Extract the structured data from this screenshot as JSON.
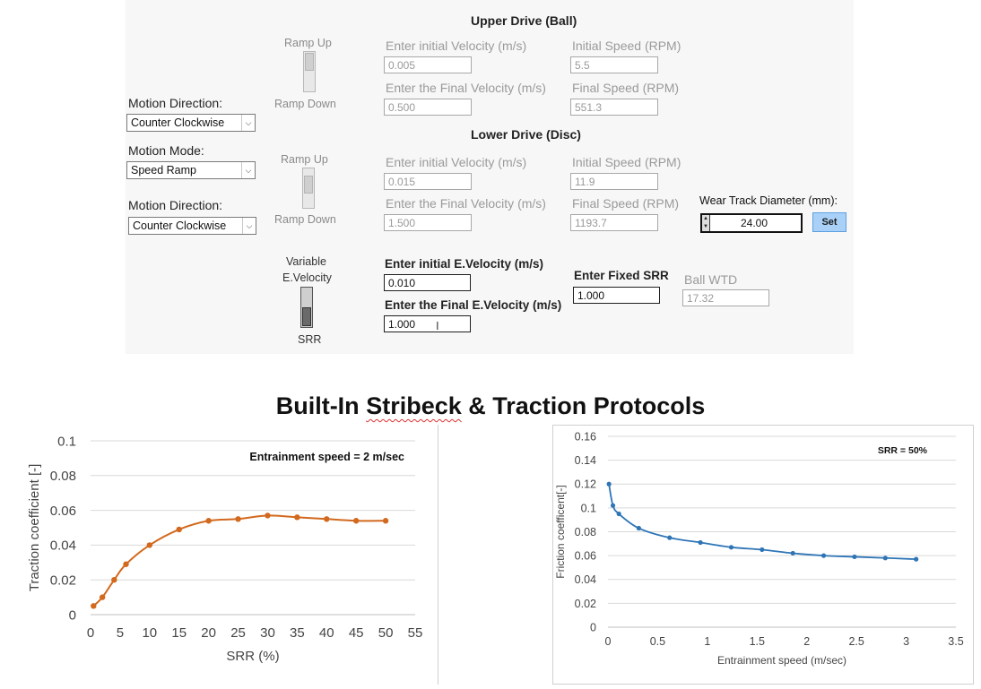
{
  "form": {
    "upper_header": "Upper Drive (Ball)",
    "lower_header": "Lower Drive (Disc)",
    "ramp_up_1": "Ramp Up",
    "ramp_down_1": "Ramp Down",
    "ramp_up_2": "Ramp Up",
    "ramp_down_2": "Ramp Down",
    "motion_direction_label_1": "Motion Direction:",
    "motion_direction_value_1": "Counter Clockwise",
    "motion_mode_label": "Motion Mode:",
    "motion_mode_value": "Speed Ramp",
    "motion_direction_label_2": "Motion Direction:",
    "motion_direction_value_2": "Counter Clockwise",
    "upper": {
      "init_vel_label": "Enter initial Velocity (m/s)",
      "init_vel_value": "0.005",
      "init_speed_label": "Initial Speed (RPM)",
      "init_speed_value": "5.5",
      "final_vel_label": "Enter the Final Velocity (m/s)",
      "final_vel_value": "0.500",
      "final_speed_label": "Final Speed (RPM)",
      "final_speed_value": "551.3"
    },
    "lower": {
      "init_vel_label": "Enter initial Velocity (m/s)",
      "init_vel_value": "0.015",
      "init_speed_label": "Initial Speed (RPM)",
      "init_speed_value": "11.9",
      "final_vel_label": "Enter the Final Velocity (m/s)",
      "final_vel_value": "1.500",
      "final_speed_label": "Final Speed (RPM)",
      "final_speed_value": "1193.7"
    },
    "wear_track_label": "Wear Track Diameter (mm):",
    "wear_track_value": "24.00",
    "set_label": "Set",
    "variable_label_1": "Variable",
    "variable_label_2": "E.Velocity",
    "srr_slider_label": "SRR",
    "init_evel_label": "Enter initial E.Velocity (m/s)",
    "init_evel_value": "0.010",
    "final_evel_label": "Enter the Final E.Velocity (m/s)",
    "final_evel_value": "1.000",
    "fixed_srr_label": "Enter Fixed SRR",
    "fixed_srr_value": "1.000",
    "ball_wtd_label": "Ball WTD",
    "ball_wtd_value": "17.32"
  },
  "title": {
    "part1": "Built-In ",
    "part2": "Stribeck",
    "part3": " & Traction Protocols"
  },
  "chart_data": [
    {
      "type": "line",
      "title": "",
      "annotation": "Entrainment speed = 2 m/sec",
      "xlabel": "SRR (%)",
      "ylabel": "Traction coefficient [-]",
      "x": [
        0.5,
        2,
        4,
        6,
        10,
        15,
        20,
        25,
        30,
        35,
        40,
        45,
        50
      ],
      "y": [
        0.005,
        0.01,
        0.02,
        0.029,
        0.04,
        0.049,
        0.054,
        0.055,
        0.057,
        0.056,
        0.055,
        0.054,
        0.054
      ],
      "xlim": [
        0,
        55
      ],
      "ylim": [
        0,
        0.1
      ],
      "xticks": [
        "0",
        "5",
        "10",
        "15",
        "20",
        "25",
        "30",
        "35",
        "40",
        "45",
        "50",
        "55"
      ],
      "yticks": [
        "0",
        "0.02",
        "0.04",
        "0.06",
        "0.08",
        "0.1"
      ],
      "grid": "horizontal",
      "color": "#d2691e"
    },
    {
      "type": "line",
      "title": "",
      "annotation": "SRR = 50%",
      "xlabel": "Entrainment speed (m/sec)",
      "ylabel": "Friction coefficent[-]",
      "x": [
        0.01,
        0.05,
        0.11,
        0.31,
        0.62,
        0.93,
        1.24,
        1.55,
        1.86,
        2.17,
        2.48,
        2.79,
        3.1
      ],
      "y": [
        0.12,
        0.102,
        0.095,
        0.083,
        0.075,
        0.071,
        0.067,
        0.065,
        0.062,
        0.06,
        0.059,
        0.058,
        0.057
      ],
      "xlim": [
        0,
        3.5
      ],
      "ylim": [
        0,
        0.16
      ],
      "xticks": [
        "0",
        "0.5",
        "1",
        "1.5",
        "2",
        "2.5",
        "3",
        "3.5"
      ],
      "yticks": [
        "0",
        "0.02",
        "0.04",
        "0.06",
        "0.08",
        "0.1",
        "0.12",
        "0.14",
        "0.16"
      ],
      "grid": "horizontal",
      "color": "#2e75b6"
    }
  ]
}
